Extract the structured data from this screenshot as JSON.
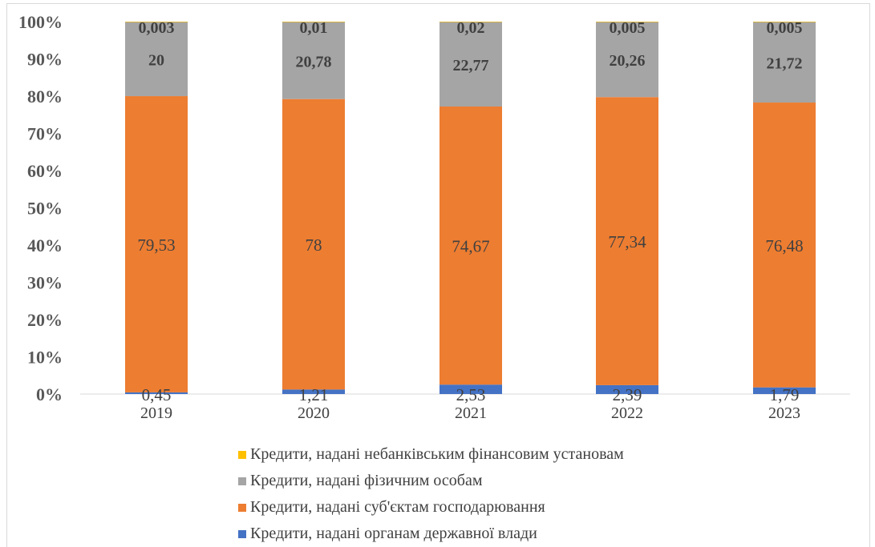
{
  "chart_data": {
    "type": "bar",
    "stacked": "percent",
    "categories": [
      "2019",
      "2020",
      "2021",
      "2022",
      "2023"
    ],
    "series": [
      {
        "name": "Кредити, надані органам державної влади",
        "color": "#4472c4",
        "values": [
          0.45,
          1.21,
          2.53,
          2.39,
          1.79
        ],
        "labels": [
          "0,45",
          "1,21",
          "2,53",
          "2,39",
          "1,79"
        ]
      },
      {
        "name": "Кредити, надані суб'єктам господарювання",
        "color": "#ed7d31",
        "values": [
          79.53,
          78,
          74.67,
          77.34,
          76.48
        ],
        "labels": [
          "79,53",
          "78",
          "74,67",
          "77,34",
          "76,48"
        ]
      },
      {
        "name": "Кредити, надані фізичним особам",
        "color": "#a5a5a5",
        "values": [
          20,
          20.78,
          22.77,
          20.26,
          21.72
        ],
        "labels": [
          "20",
          "20,78",
          "22,77",
          "20,26",
          "21,72"
        ]
      },
      {
        "name": "Кредити, надані небанківським фінансовим установам",
        "color": "#ffc000",
        "values": [
          0.003,
          0.01,
          0.02,
          0.005,
          0.005
        ],
        "labels": [
          "0,003",
          "0,01",
          "0,02",
          "0,005",
          "0,005"
        ]
      }
    ],
    "y_ticks": [
      "0%",
      "10%",
      "20%",
      "30%",
      "40%",
      "50%",
      "60%",
      "70%",
      "80%",
      "90%",
      "100%"
    ],
    "ylim": [
      0,
      100
    ],
    "grid": false,
    "legend_position": "bottom",
    "legend_order": [
      3,
      2,
      1,
      0
    ]
  }
}
